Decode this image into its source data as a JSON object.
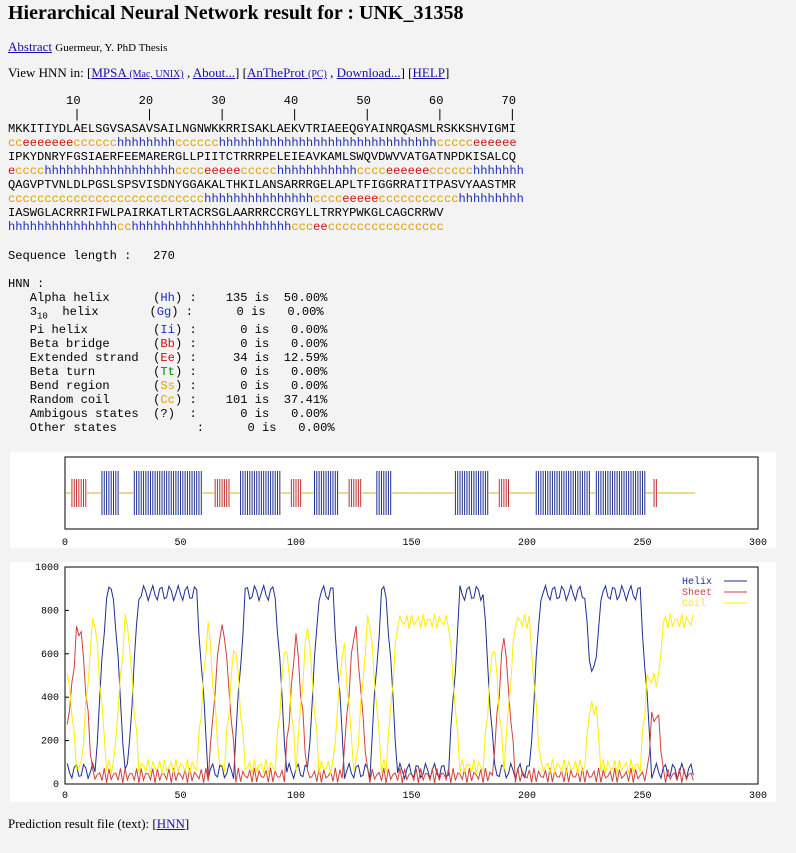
{
  "page": {
    "title": "Hierarchical Neural Network result for : UNK_31358",
    "abstract_link": "Abstract",
    "abstract_author": "Guermeur, Y. PhD Thesis",
    "view_prefix": "View HNN in: [",
    "mpsa_link": "MPSA",
    "mpsa_sub": "(Mac, UNIX)",
    "about_link": "About...",
    "antheprot_link": "AnTheProt",
    "antheprot_sub": "(PC)",
    "download_link": "Download...",
    "help_link": "HELP",
    "footer_prefix": "Prediction result file (text): [",
    "footer_link": "HNN",
    "footer_suffix": "]"
  },
  "ruler": {
    "numbers": "        10        20        30        40        50        60        70",
    "ticks": "         |         |         |         |         |         |         |"
  },
  "sequence": [
    {
      "seq": "MKKITIYDLAELSGVSASAVSAILNGNWKKRRISAKLAEKVTRIAEEQGYAINRQASMLRSKKSHVIGMI",
      "pred": "cceeeeeeecccccchhhhhhhhcccccchhhhhhhhhhhhhhhhhhhhhhhhhhhhhhccccceeeeee"
    },
    {
      "seq": "IPKYDNRYFGSIAERFEEMARERGLLPIITCTRRRPELEIEAVKAMLSWQVDWVVATGATNPDKISALCQ",
      "pred": "ecccchhhhhhhhhhhhhhhhhhcccceeeeeccccchhhhhhhhhhhcccceeeeeecccccchhhhhhh"
    },
    {
      "seq": "QAGVPTVNLDLPGSLSPSVISDNYGGAKALTHKILANSARRRGELAPLTFIGGRRATITPASVYAASTMR",
      "pred": "ccccccccccccccccccccccccccchhhhhhhhhhhhhhhcccceeeeeccccccccccchhhhhhhhh"
    },
    {
      "seq": "IASWGLACRRRIFWLPAIRKATLRTACRSGLAARRRCCRGYLLTRRYPWKGLCAGCRRWV",
      "pred": "hhhhhhhhhhhhhhhcchhhhhhhhhhhhhhhhhhhhhhccceecccccccccccccccc"
    }
  ],
  "seq_length_label": "Sequence length :",
  "seq_length_value": "270",
  "hnn": {
    "header": "HNN :",
    "rows": [
      {
        "name": "Alpha helix",
        "code": "Hh",
        "count": "135",
        "pct": "50.00%"
      },
      {
        "name": "3",
        "sub": "10",
        "name2": "helix",
        "code": "Gg",
        "count": "0",
        "pct": "0.00%"
      },
      {
        "name": "Pi helix",
        "code": "Ii",
        "count": "0",
        "pct": "0.00%"
      },
      {
        "name": "Beta bridge",
        "code": "Bb",
        "count": "0",
        "pct": "0.00%"
      },
      {
        "name": "Extended strand",
        "code": "Ee",
        "count": "34",
        "pct": "12.59%"
      },
      {
        "name": "Beta turn",
        "code": "Tt",
        "count": "0",
        "pct": "0.00%"
      },
      {
        "name": "Bend region",
        "code": "Ss",
        "count": "0",
        "pct": "0.00%"
      },
      {
        "name": "Random coil",
        "code": "Cc",
        "count": "101",
        "pct": "37.41%"
      },
      {
        "name": "Ambigous states",
        "code": "?",
        "count": "0",
        "pct": "0.00%"
      },
      {
        "name": "Other states",
        "code": "",
        "count": "0",
        "pct": "0.00%"
      }
    ]
  },
  "chart_data": [
    {
      "type": "bar",
      "title": "",
      "xlim": [
        0,
        300
      ],
      "x_ticks": [
        "0",
        "50",
        "100",
        "150",
        "200",
        "250",
        "300"
      ],
      "colors": {
        "helix": "#1f2f8f",
        "sheet": "#c03030",
        "coil": "#d8b400"
      },
      "note_states_source": "sequence[].pred"
    },
    {
      "type": "line",
      "title": "",
      "xlim": [
        0,
        300
      ],
      "ylim": [
        0,
        1000
      ],
      "x_ticks": [
        "0",
        "50",
        "100",
        "150",
        "200",
        "250",
        "300"
      ],
      "y_ticks": [
        "0",
        "200",
        "400",
        "600",
        "800",
        "1000"
      ],
      "legend_position": "top-right",
      "series": [
        {
          "name": "Helix",
          "color": "#1f2f8f"
        },
        {
          "name": "Sheet",
          "color": "#d04040"
        },
        {
          "name": "Coil",
          "color": "#ffee00"
        }
      ]
    }
  ]
}
